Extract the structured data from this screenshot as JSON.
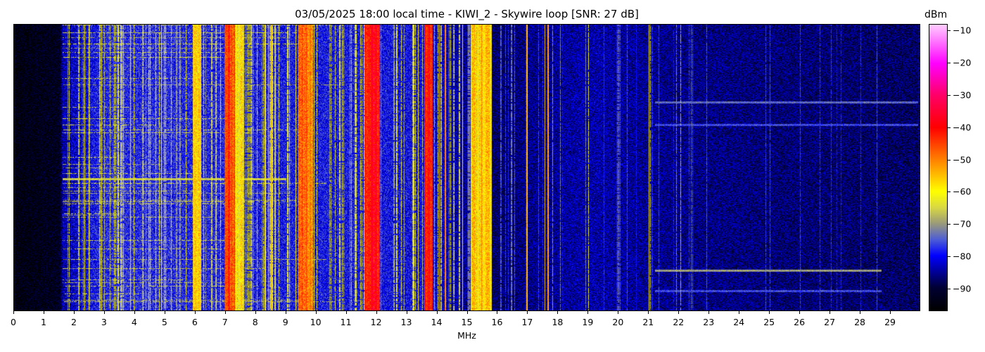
{
  "chart_data": {
    "type": "heatmap",
    "title": "03/05/2025 18:00 local time - KIWI_2 - Skywire loop [SNR: 27 dB]",
    "xlabel": "MHz",
    "ylabel": "",
    "xlim": [
      0,
      30
    ],
    "x_ticks": [
      "0",
      "1",
      "2",
      "3",
      "4",
      "5",
      "6",
      "7",
      "8",
      "9",
      "10",
      "11",
      "12",
      "13",
      "14",
      "15",
      "16",
      "17",
      "18",
      "19",
      "20",
      "21",
      "22",
      "23",
      "24",
      "25",
      "26",
      "27",
      "28",
      "29"
    ],
    "colorbar": {
      "label": "dBm",
      "range": [
        -97,
        -8
      ],
      "ticks": [
        "−10",
        "−20",
        "−30",
        "−40",
        "−50",
        "−60",
        "−70",
        "−80",
        "−90"
      ],
      "tick_values": [
        -10,
        -20,
        -30,
        -40,
        -50,
        -60,
        -70,
        -80,
        -90
      ],
      "colormap": [
        {
          "v": -97,
          "color": "#000000"
        },
        {
          "v": -90,
          "color": "#000033"
        },
        {
          "v": -85,
          "color": "#000099"
        },
        {
          "v": -80,
          "color": "#0000ff"
        },
        {
          "v": -75,
          "color": "#4d5dd6"
        },
        {
          "v": -70,
          "color": "#9a9a7a"
        },
        {
          "v": -65,
          "color": "#d8d844"
        },
        {
          "v": -60,
          "color": "#ffff00"
        },
        {
          "v": -50,
          "color": "#ff8000"
        },
        {
          "v": -40,
          "color": "#ff0000"
        },
        {
          "v": -30,
          "color": "#ff0066"
        },
        {
          "v": -20,
          "color": "#ff00ff"
        },
        {
          "v": -8,
          "color": "#ffccff"
        }
      ]
    },
    "noise_floor_profile": [
      {
        "mhz": 0,
        "dbm": -95
      },
      {
        "mhz": 1.5,
        "dbm": -93
      },
      {
        "mhz": 1.6,
        "dbm": -84
      },
      {
        "mhz": 3,
        "dbm": -78
      },
      {
        "mhz": 5,
        "dbm": -78
      },
      {
        "mhz": 8,
        "dbm": -79
      },
      {
        "mhz": 9.3,
        "dbm": -79
      },
      {
        "mhz": 13.5,
        "dbm": -80
      },
      {
        "mhz": 15.8,
        "dbm": -88
      },
      {
        "mhz": 17,
        "dbm": -86
      },
      {
        "mhz": 19,
        "dbm": -84
      },
      {
        "mhz": 22,
        "dbm": -86
      },
      {
        "mhz": 30,
        "dbm": -88
      }
    ],
    "broadcast_bands": [
      {
        "from_mhz": 5.9,
        "to_mhz": 6.2,
        "dbm": -62
      },
      {
        "from_mhz": 6.95,
        "to_mhz": 7.3,
        "dbm": -48
      },
      {
        "from_mhz": 7.3,
        "to_mhz": 7.6,
        "dbm": -62
      },
      {
        "from_mhz": 9.4,
        "to_mhz": 9.9,
        "dbm": -52
      },
      {
        "from_mhz": 11.6,
        "to_mhz": 12.1,
        "dbm": -43
      },
      {
        "from_mhz": 13.57,
        "to_mhz": 13.85,
        "dbm": -46
      },
      {
        "from_mhz": 15.1,
        "to_mhz": 15.8,
        "dbm": -60
      }
    ],
    "strong_carriers_mhz": [
      {
        "mhz": 3.95,
        "dbm": -62
      },
      {
        "mhz": 4.25,
        "dbm": -60
      },
      {
        "mhz": 4.95,
        "dbm": -62
      },
      {
        "mhz": 5.0,
        "dbm": -60
      },
      {
        "mhz": 6.0,
        "dbm": -60
      },
      {
        "mhz": 7.05,
        "dbm": -45
      },
      {
        "mhz": 8.4,
        "dbm": -55
      },
      {
        "mhz": 8.5,
        "dbm": -52
      },
      {
        "mhz": 9.5,
        "dbm": -50
      },
      {
        "mhz": 9.65,
        "dbm": -48
      },
      {
        "mhz": 9.75,
        "dbm": -50
      },
      {
        "mhz": 10.0,
        "dbm": -60
      },
      {
        "mhz": 10.85,
        "dbm": -62
      },
      {
        "mhz": 11.7,
        "dbm": -42
      },
      {
        "mhz": 11.85,
        "dbm": -40
      },
      {
        "mhz": 11.95,
        "dbm": -42
      },
      {
        "mhz": 13.7,
        "dbm": -42
      },
      {
        "mhz": 14.05,
        "dbm": -55
      },
      {
        "mhz": 14.25,
        "dbm": -48
      },
      {
        "mhz": 15.0,
        "dbm": -60
      },
      {
        "mhz": 15.45,
        "dbm": -52
      },
      {
        "mhz": 15.55,
        "dbm": -58
      },
      {
        "mhz": 16.45,
        "dbm": -70
      },
      {
        "mhz": 16.95,
        "dbm": -52
      },
      {
        "mhz": 17.55,
        "dbm": -55
      },
      {
        "mhz": 17.65,
        "dbm": -50
      },
      {
        "mhz": 17.8,
        "dbm": -70
      },
      {
        "mhz": 18.05,
        "dbm": -72
      },
      {
        "mhz": 18.9,
        "dbm": -72
      },
      {
        "mhz": 19.0,
        "dbm": -62
      },
      {
        "mhz": 19.95,
        "dbm": -72
      },
      {
        "mhz": 20.0,
        "dbm": -68
      },
      {
        "mhz": 21.0,
        "dbm": -58
      },
      {
        "mhz": 21.05,
        "dbm": -65
      },
      {
        "mhz": 21.9,
        "dbm": -72
      },
      {
        "mhz": 22.05,
        "dbm": -68
      },
      {
        "mhz": 22.4,
        "dbm": -74
      },
      {
        "mhz": 24.85,
        "dbm": -76
      },
      {
        "mhz": 28.0,
        "dbm": -78
      }
    ],
    "horizontal_bursts": [
      {
        "row": 0.27,
        "from_mhz": 21.2,
        "to_mhz": 29.9,
        "dbm": -74
      },
      {
        "row": 0.35,
        "from_mhz": 21.2,
        "to_mhz": 29.9,
        "dbm": -76
      },
      {
        "row": 0.54,
        "from_mhz": 1.6,
        "to_mhz": 9.0,
        "dbm": -66
      },
      {
        "row": 0.86,
        "from_mhz": 21.2,
        "to_mhz": 28.7,
        "dbm": -70
      },
      {
        "row": 0.93,
        "from_mhz": 21.2,
        "to_mhz": 28.7,
        "dbm": -76
      }
    ]
  }
}
